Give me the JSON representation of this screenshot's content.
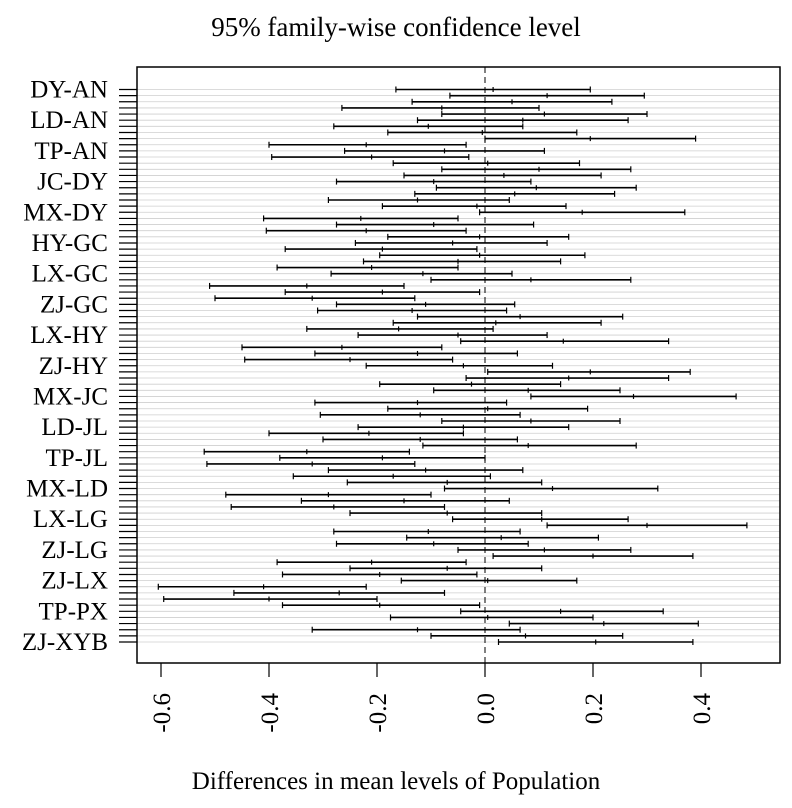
{
  "chart_data": {
    "type": "interval",
    "title": "95% family-wise confidence level",
    "xlabel": "Differences in mean levels of Population",
    "ylabel": "",
    "xlim": [
      -0.64,
      0.5
    ],
    "xticks": [
      -0.6,
      -0.4,
      -0.2,
      0.0,
      0.2,
      0.4
    ],
    "xtick_labels": [
      "-0.6",
      "-0.4",
      "-0.2",
      "0.0",
      "0.2",
      "0.4"
    ],
    "reference_line": 0.0,
    "labeled_rows": [
      "DY-AN",
      "LD-AN",
      "TP-AN",
      "JC-DY",
      "MX-DY",
      "HY-GC",
      "LX-GC",
      "ZJ-GC",
      "LX-HY",
      "ZJ-HY",
      "MX-JC",
      "LD-JL",
      "TP-JL",
      "MX-LD",
      "LX-LG",
      "ZJ-LG",
      "ZJ-LX",
      "TP-PX",
      "ZJ-XYB"
    ],
    "intervals": [
      {
        "lwr": -0.165,
        "est": 0.015,
        "upr": 0.195
      },
      {
        "lwr": -0.065,
        "est": 0.115,
        "upr": 0.295
      },
      {
        "lwr": -0.135,
        "est": 0.05,
        "upr": 0.235
      },
      {
        "lwr": -0.265,
        "est": -0.08,
        "upr": 0.1
      },
      {
        "lwr": -0.08,
        "est": 0.11,
        "upr": 0.3
      },
      {
        "lwr": -0.125,
        "est": 0.07,
        "upr": 0.265
      },
      {
        "lwr": -0.28,
        "est": -0.105,
        "upr": 0.07
      },
      {
        "lwr": -0.18,
        "est": -0.005,
        "upr": 0.17
      },
      {
        "lwr": 0.0,
        "est": 0.195,
        "upr": 0.39
      },
      {
        "lwr": -0.4,
        "est": -0.22,
        "upr": -0.035
      },
      {
        "lwr": -0.26,
        "est": -0.075,
        "upr": 0.11
      },
      {
        "lwr": -0.395,
        "est": -0.21,
        "upr": -0.03
      },
      {
        "lwr": -0.17,
        "est": 0.005,
        "upr": 0.175
      },
      {
        "lwr": -0.08,
        "est": 0.1,
        "upr": 0.27
      },
      {
        "lwr": -0.15,
        "est": 0.035,
        "upr": 0.215
      },
      {
        "lwr": -0.275,
        "est": -0.095,
        "upr": 0.085
      },
      {
        "lwr": -0.09,
        "est": 0.095,
        "upr": 0.28
      },
      {
        "lwr": -0.13,
        "est": 0.055,
        "upr": 0.24
      },
      {
        "lwr": -0.29,
        "est": -0.125,
        "upr": 0.045
      },
      {
        "lwr": -0.19,
        "est": -0.015,
        "upr": 0.15
      },
      {
        "lwr": -0.01,
        "est": 0.18,
        "upr": 0.37
      },
      {
        "lwr": -0.41,
        "est": -0.23,
        "upr": -0.05
      },
      {
        "lwr": -0.275,
        "est": -0.095,
        "upr": 0.09
      },
      {
        "lwr": -0.405,
        "est": -0.22,
        "upr": -0.035
      },
      {
        "lwr": -0.18,
        "est": -0.01,
        "upr": 0.155
      },
      {
        "lwr": -0.24,
        "est": -0.06,
        "upr": 0.115
      },
      {
        "lwr": -0.37,
        "est": -0.19,
        "upr": -0.015
      },
      {
        "lwr": -0.195,
        "est": -0.01,
        "upr": 0.185
      },
      {
        "lwr": -0.225,
        "est": -0.05,
        "upr": 0.14
      },
      {
        "lwr": -0.385,
        "est": -0.21,
        "upr": -0.05
      },
      {
        "lwr": -0.285,
        "est": -0.115,
        "upr": 0.05
      },
      {
        "lwr": -0.1,
        "est": 0.085,
        "upr": 0.27
      },
      {
        "lwr": -0.51,
        "est": -0.33,
        "upr": -0.15
      },
      {
        "lwr": -0.37,
        "est": -0.19,
        "upr": -0.01
      },
      {
        "lwr": -0.5,
        "est": -0.32,
        "upr": -0.13
      },
      {
        "lwr": -0.275,
        "est": -0.11,
        "upr": 0.055
      },
      {
        "lwr": -0.31,
        "est": -0.135,
        "upr": 0.04
      },
      {
        "lwr": -0.125,
        "est": 0.065,
        "upr": 0.255
      },
      {
        "lwr": -0.17,
        "est": 0.02,
        "upr": 0.215
      },
      {
        "lwr": -0.33,
        "est": -0.16,
        "upr": 0.015
      },
      {
        "lwr": -0.235,
        "est": -0.05,
        "upr": 0.115
      },
      {
        "lwr": -0.045,
        "est": 0.145,
        "upr": 0.34
      },
      {
        "lwr": -0.45,
        "est": -0.265,
        "upr": -0.08
      },
      {
        "lwr": -0.315,
        "est": -0.125,
        "upr": 0.06
      },
      {
        "lwr": -0.445,
        "est": -0.25,
        "upr": -0.06
      },
      {
        "lwr": -0.22,
        "est": -0.04,
        "upr": 0.125
      },
      {
        "lwr": 0.005,
        "est": 0.195,
        "upr": 0.38
      },
      {
        "lwr": -0.035,
        "est": 0.155,
        "upr": 0.34
      },
      {
        "lwr": -0.195,
        "est": -0.025,
        "upr": 0.14
      },
      {
        "lwr": -0.095,
        "est": 0.08,
        "upr": 0.25
      },
      {
        "lwr": 0.085,
        "est": 0.275,
        "upr": 0.465
      },
      {
        "lwr": -0.315,
        "est": -0.125,
        "upr": 0.04
      },
      {
        "lwr": -0.18,
        "est": 0.005,
        "upr": 0.19
      },
      {
        "lwr": -0.305,
        "est": -0.12,
        "upr": 0.065
      },
      {
        "lwr": -0.08,
        "est": 0.085,
        "upr": 0.25
      },
      {
        "lwr": -0.235,
        "est": -0.04,
        "upr": 0.155
      },
      {
        "lwr": -0.4,
        "est": -0.215,
        "upr": -0.04
      },
      {
        "lwr": -0.3,
        "est": -0.12,
        "upr": 0.06
      },
      {
        "lwr": -0.115,
        "est": 0.08,
        "upr": 0.28
      },
      {
        "lwr": -0.52,
        "est": -0.33,
        "upr": -0.14
      },
      {
        "lwr": -0.38,
        "est": -0.19,
        "upr": 0.0
      },
      {
        "lwr": -0.515,
        "est": -0.32,
        "upr": -0.13
      },
      {
        "lwr": -0.29,
        "est": -0.11,
        "upr": 0.07
      },
      {
        "lwr": -0.355,
        "est": -0.17,
        "upr": 0.01
      },
      {
        "lwr": -0.255,
        "est": -0.07,
        "upr": 0.105
      },
      {
        "lwr": -0.075,
        "est": 0.125,
        "upr": 0.32
      },
      {
        "lwr": -0.48,
        "est": -0.29,
        "upr": -0.1
      },
      {
        "lwr": -0.34,
        "est": -0.15,
        "upr": 0.045
      },
      {
        "lwr": -0.47,
        "est": -0.28,
        "upr": -0.075
      },
      {
        "lwr": -0.25,
        "est": -0.07,
        "upr": 0.105
      },
      {
        "lwr": -0.06,
        "est": 0.105,
        "upr": 0.265
      },
      {
        "lwr": 0.115,
        "est": 0.3,
        "upr": 0.485
      },
      {
        "lwr": -0.28,
        "est": -0.105,
        "upr": 0.065
      },
      {
        "lwr": -0.145,
        "est": 0.03,
        "upr": 0.21
      },
      {
        "lwr": -0.275,
        "est": -0.095,
        "upr": 0.08
      },
      {
        "lwr": -0.05,
        "est": 0.11,
        "upr": 0.27
      },
      {
        "lwr": 0.015,
        "est": 0.2,
        "upr": 0.385
      },
      {
        "lwr": -0.385,
        "est": -0.21,
        "upr": -0.035
      },
      {
        "lwr": -0.25,
        "est": -0.07,
        "upr": 0.105
      },
      {
        "lwr": -0.375,
        "est": -0.195,
        "upr": -0.015
      },
      {
        "lwr": -0.155,
        "est": 0.005,
        "upr": 0.17
      },
      {
        "lwr": -0.605,
        "est": -0.41,
        "upr": -0.22
      },
      {
        "lwr": -0.465,
        "est": -0.27,
        "upr": -0.075
      },
      {
        "lwr": -0.595,
        "est": -0.4,
        "upr": -0.2
      },
      {
        "lwr": -0.375,
        "est": -0.195,
        "upr": -0.01
      },
      {
        "lwr": -0.045,
        "est": 0.14,
        "upr": 0.33
      },
      {
        "lwr": -0.175,
        "est": 0.005,
        "upr": 0.2
      },
      {
        "lwr": 0.045,
        "est": 0.22,
        "upr": 0.395
      },
      {
        "lwr": -0.32,
        "est": -0.125,
        "upr": 0.065
      },
      {
        "lwr": -0.1,
        "est": 0.075,
        "upr": 0.255
      },
      {
        "lwr": 0.025,
        "est": 0.205,
        "upr": 0.385
      }
    ]
  }
}
